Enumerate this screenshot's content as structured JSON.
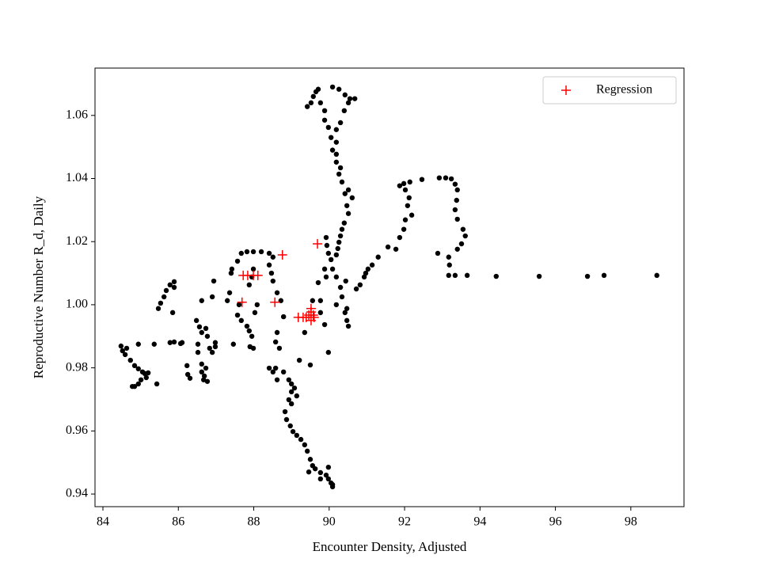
{
  "chart_data": {
    "type": "scatter",
    "x_label": "Encounter Density, Adjusted",
    "y_label": "Reproductive Number R_d, Daily",
    "xlim": [
      83.79,
      99.41
    ],
    "ylim": [
      0.936,
      1.075
    ],
    "xticks": [
      84,
      86,
      88,
      90,
      92,
      94,
      96,
      98
    ],
    "yticks": [
      0.94,
      0.96,
      0.98,
      {
        "value": 1,
        "label": "1.00"
      },
      1.02,
      1.04,
      1.06
    ],
    "legend": "upper right",
    "series": [
      {
        "color": "#000000",
        "marker": "o",
        "x": [
          84.48,
          84.52,
          84.63,
          84.59,
          84.73,
          84.84,
          84.94,
          85.05,
          85.11,
          85.01,
          84.94,
          84.84,
          84.78,
          85.15,
          85.2,
          84.94,
          85.36,
          85.43,
          85.47,
          85.53,
          85.62,
          85.68,
          85.78,
          85.89,
          85.89,
          85.85,
          85.78,
          85.89,
          86.06,
          86.1,
          86.23,
          86.25,
          86.31,
          86.48,
          86.56,
          86.62,
          86.73,
          86.77,
          86.52,
          86.52,
          86.62,
          86.62,
          86.67,
          86.77,
          86.69,
          86.73,
          86.83,
          86.9,
          86.98,
          86.98,
          86.62,
          86.9,
          86.94,
          87.36,
          87.3,
          87.42,
          87.4,
          87.46,
          87.57,
          87.67,
          87.82,
          87.99,
          88.2,
          88.41,
          88.51,
          88.41,
          88.47,
          88.51,
          88.62,
          88.72,
          88.79,
          88.62,
          88.58,
          88.68,
          88.41,
          88.51,
          88.62,
          88.58,
          88.79,
          88.93,
          89.0,
          89.0,
          88.93,
          88.83,
          88.87,
          88.97,
          89.04,
          89.14,
          89.25,
          89.35,
          89.42,
          89.5,
          89.56,
          89.63,
          89.77,
          89.92,
          89.98,
          90.05,
          90.09,
          90.09,
          89.98,
          89.77,
          89.46,
          89.08,
          89.14,
          89.0,
          89.21,
          89.35,
          89.5,
          87.61,
          87.57,
          87.67,
          87.82,
          87.88,
          87.95,
          87.99,
          87.9,
          88.03,
          88.09,
          87.88,
          87.95,
          87.99,
          89.42,
          89.52,
          89.58,
          89.65,
          89.71,
          89.77,
          89.88,
          89.88,
          89.98,
          90.05,
          90.09,
          90.19,
          90.26,
          90.34,
          90.42,
          90.47,
          90.51,
          90.4,
          90.34,
          90.3,
          90.26,
          90.23,
          90.19,
          90.05,
          90.09,
          90.19,
          90.3,
          90.34,
          90.47,
          90.47,
          90.51,
          90.42,
          89.92,
          89.94,
          89.98,
          89.88,
          89.92,
          89.71,
          89.77,
          89.77,
          89.88,
          89.98,
          89.56,
          90.09,
          90.26,
          90.42,
          90.55,
          90.68,
          90.51,
          90.4,
          90.3,
          90.19,
          90.19,
          90.19,
          90.3,
          90.51,
          90.61,
          90.72,
          90.82,
          90.93,
          90.97,
          91.03,
          91.14,
          91.3,
          91.56,
          91.77,
          91.87,
          91.98,
          92.02,
          92.08,
          92.19,
          92.12,
          92.02,
          91.87,
          91.98,
          92.14,
          92.46,
          92.92,
          93.09,
          93.24,
          93.34,
          93.4,
          93.38,
          93.34,
          93.4,
          93.55,
          93.61,
          93.51,
          93.4,
          93.17,
          93.19,
          93.17,
          93.34,
          93.66,
          94.43,
          95.57,
          96.85,
          97.29,
          98.69,
          92.88,
          90.44,
          90.19
        ],
        "values": [
          0.9869,
          0.9854,
          0.9862,
          0.9842,
          0.9824,
          0.9807,
          0.9797,
          0.9787,
          0.9782,
          0.9762,
          0.9749,
          0.9741,
          0.9741,
          0.9769,
          0.9784,
          0.9875,
          0.9875,
          0.9749,
          0.9988,
          1.0005,
          1.0025,
          1.0045,
          1.0063,
          1.0073,
          1.0055,
          0.9975,
          0.988,
          0.9882,
          0.9877,
          0.988,
          0.9807,
          0.9779,
          0.9767,
          0.995,
          0.993,
          0.9912,
          0.9925,
          0.99,
          0.9875,
          0.9849,
          0.9812,
          0.9787,
          0.9762,
          0.9757,
          0.9774,
          0.9799,
          0.9862,
          0.9849,
          0.988,
          0.9867,
          1.0013,
          1.0025,
          1.0075,
          1.0038,
          1.0013,
          1.0113,
          1.01,
          0.9875,
          1.0138,
          1.0163,
          1.0168,
          1.0168,
          1.0168,
          1.0163,
          1.0151,
          1.0126,
          1.01,
          1.0075,
          1.0038,
          1.0013,
          0.9962,
          0.9912,
          0.9882,
          0.9862,
          0.9799,
          0.9787,
          0.9762,
          0.9799,
          0.9787,
          0.9762,
          0.9749,
          0.9724,
          0.9699,
          0.9661,
          0.9636,
          0.9616,
          0.9598,
          0.9586,
          0.9573,
          0.9556,
          0.9536,
          0.951,
          0.949,
          0.948,
          0.9468,
          0.946,
          0.9448,
          0.9435,
          0.9423,
          0.943,
          0.9485,
          0.9448,
          0.947,
          0.9736,
          0.9711,
          0.9686,
          0.9824,
          0.9912,
          0.9809,
          1.0,
          0.9967,
          0.995,
          0.9932,
          0.9917,
          0.99,
          0.9862,
          0.9867,
          0.9975,
          1.0,
          1.0063,
          1.0088,
          1.0113,
          1.0628,
          1.064,
          1.066,
          1.0675,
          1.0683,
          1.064,
          1.0615,
          1.0585,
          1.0562,
          1.053,
          1.049,
          1.0452,
          1.0414,
          1.0389,
          1.0352,
          1.0314,
          1.0289,
          1.0259,
          1.0239,
          1.0218,
          1.0198,
          1.0178,
          1.0158,
          1.0143,
          1.0113,
          1.0088,
          1.0055,
          1.0025,
          0.9988,
          0.995,
          0.9932,
          0.9975,
          1.0213,
          1.0188,
          1.0163,
          1.0113,
          1.0088,
          1.007,
          1.0013,
          0.9975,
          0.9937,
          0.9849,
          1.0013,
          1.069,
          1.0683,
          1.0665,
          1.0653,
          1.0653,
          1.064,
          1.0615,
          1.0577,
          1.0555,
          1.0515,
          1.0477,
          1.0434,
          1.0364,
          1.0339,
          1.005,
          1.0063,
          1.0088,
          1.01,
          1.0113,
          1.0126,
          1.0151,
          1.0183,
          1.0176,
          1.0213,
          1.0239,
          1.0269,
          1.0314,
          1.0284,
          1.0339,
          1.0364,
          1.0377,
          1.0384,
          1.0389,
          1.0397,
          1.0402,
          1.0402,
          1.0399,
          1.0382,
          1.0364,
          1.0331,
          1.0301,
          1.0271,
          1.0239,
          1.0218,
          1.0193,
          1.0176,
          1.0151,
          1.0126,
          1.0093,
          1.0093,
          1.0093,
          1.009,
          1.009,
          1.009,
          1.0093,
          1.0093,
          1.0163,
          1.0075,
          1.0
        ]
      },
      {
        "name": "Regression",
        "color": "#ff0000",
        "marker": "+",
        "x": [
          89.69,
          88.76,
          87.72,
          87.84,
          87.99,
          88.11,
          87.69,
          88.56,
          89.18,
          89.31,
          89.39,
          89.46,
          89.52,
          89.52,
          89.58,
          89.6,
          89.52
        ],
        "values": [
          1.0193,
          1.0158,
          1.0093,
          1.0093,
          1.0093,
          1.0093,
          1.0008,
          1.0008,
          0.996,
          0.996,
          0.996,
          0.9967,
          0.9977,
          0.995,
          0.9967,
          0.996,
          0.9988
        ]
      }
    ]
  }
}
